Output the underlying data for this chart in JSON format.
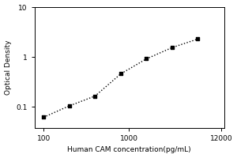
{
  "x_data": [
    100,
    200,
    400,
    800,
    1600,
    3200,
    6400
  ],
  "y_data": [
    0.062,
    0.105,
    0.165,
    0.46,
    0.92,
    1.55,
    2.3
  ],
  "xlabel": "Human CAM concentration(pg/mL)",
  "ylabel": "Optical Density",
  "xlim": [
    78,
    13000
  ],
  "ylim": [
    0.038,
    10
  ],
  "xticks": [
    100,
    1000,
    12000
  ],
  "yticks": [
    0.1,
    1,
    10
  ],
  "background_color": "#ffffff",
  "line_color": "#000000",
  "marker_color": "#000000",
  "xlabel_fontsize": 6.5,
  "ylabel_fontsize": 6.5,
  "tick_fontsize": 6.5
}
